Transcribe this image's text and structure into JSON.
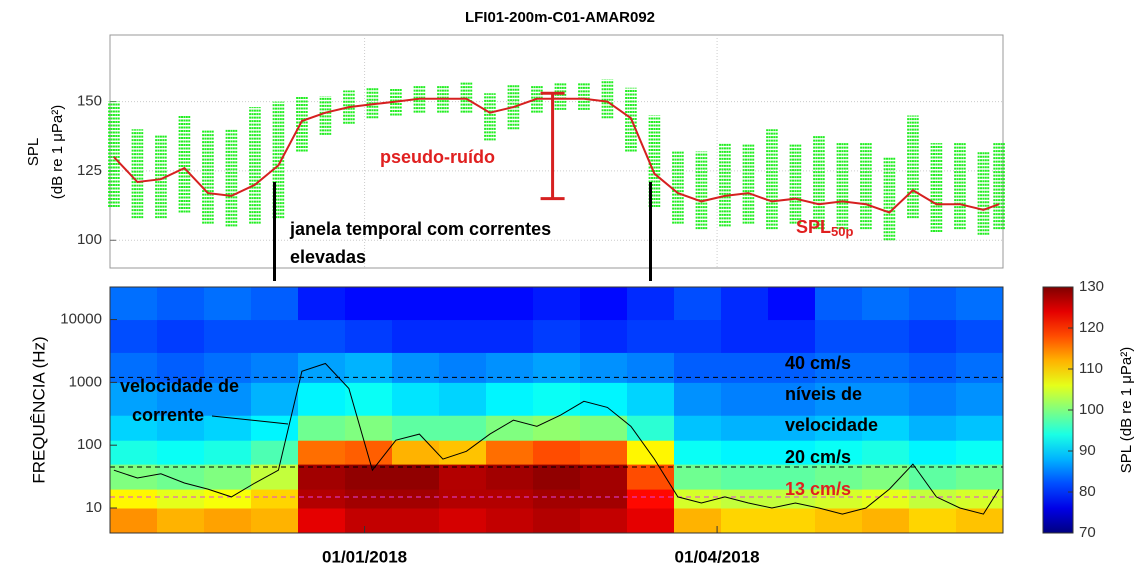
{
  "chart_data": [
    {
      "type": "line",
      "title": "LFI01-200m-C01-AMAR092",
      "ylabel": [
        "SPL",
        "(dB re 1 μPa²)"
      ],
      "xlim": [
        -65,
        163
      ],
      "ylim": [
        90,
        174
      ],
      "yticks": [
        100,
        125,
        150
      ],
      "xticks": [
        0,
        90
      ],
      "grid": true,
      "x": [
        -64,
        -58,
        -52,
        -46,
        -40,
        -34,
        -28,
        -22,
        -16,
        -10,
        -4,
        2,
        8,
        14,
        20,
        26,
        32,
        38,
        44,
        50,
        56,
        62,
        68,
        74,
        80,
        86,
        92,
        98,
        104,
        110,
        116,
        122,
        128,
        134,
        140,
        146,
        152,
        158,
        162
      ],
      "series": [
        {
          "color": "#22ee22",
          "values": [
            150,
            140,
            138,
            145,
            140,
            140,
            148,
            150,
            152,
            152,
            154,
            155,
            155,
            156,
            156,
            157,
            153,
            156,
            156,
            157,
            157,
            158,
            155,
            145,
            132,
            132,
            135,
            135,
            140,
            135,
            138,
            135,
            135,
            130,
            145,
            135,
            135,
            132,
            135
          ],
          "low": [
            112,
            108,
            108,
            110,
            106,
            105,
            106,
            108,
            132,
            138,
            142,
            144,
            145,
            146,
            146,
            146,
            136,
            140,
            146,
            147,
            147,
            144,
            132,
            112,
            106,
            104,
            105,
            106,
            104,
            106,
            104,
            104,
            104,
            100,
            108,
            103,
            104,
            102,
            104
          ]
        },
        {
          "color": "#d62020",
          "values": [
            130,
            121,
            122,
            126,
            117,
            116,
            120,
            127,
            143,
            146,
            148,
            149,
            150,
            151,
            151,
            151,
            146,
            148,
            151,
            151,
            151,
            150,
            144,
            124,
            117,
            114,
            116,
            117,
            114,
            115,
            113,
            114,
            113,
            110,
            118,
            113,
            113,
            111,
            113
          ]
        }
      ],
      "bracket": {
        "x": 48,
        "values": [
          115,
          153
        ],
        "color": "#d62020"
      },
      "window": [
        -23,
        73
      ],
      "annotations": {
        "noise": "pseudo-ruído",
        "spl": "SPL",
        "spl_sub": "50p",
        "window1": "janela temporal com correntes",
        "window2": "elevadas"
      }
    },
    {
      "type": "heatmap",
      "ylabel": "FREQUÊNCIA (Hz)",
      "log_y": true,
      "xlim": [
        -65,
        163
      ],
      "ylim": [
        4,
        33000
      ],
      "yticks": [
        10,
        100,
        1000,
        10000
      ],
      "xticks": [
        {
          "value": 0,
          "label": "01/01/2018"
        },
        {
          "value": 90,
          "label": "01/04/2018"
        }
      ],
      "xbins": [
        -65,
        -53,
        -41,
        -29,
        -17,
        -5,
        7,
        19,
        31,
        43,
        55,
        67,
        79,
        91,
        103,
        115,
        127,
        139,
        151,
        163
      ],
      "ybins": [
        4,
        10,
        20,
        50,
        120,
        300,
        1000,
        3000,
        10000,
        33000
      ],
      "z": [
        [
          114,
          112,
          113,
          112,
          124,
          126,
          126,
          125,
          126,
          127,
          126,
          124,
          112,
          110,
          110,
          111,
          112,
          110,
          111
        ],
        [
          108,
          106,
          107,
          110,
          127,
          128,
          128,
          127,
          127,
          128,
          128,
          122,
          105,
          104,
          104,
          105,
          106,
          104,
          105
        ],
        [
          100,
          99,
          100,
          104,
          128,
          129,
          129,
          127,
          128,
          129,
          128,
          118,
          99,
          98,
          98,
          99,
          100,
          98,
          99
        ],
        [
          94,
          93,
          94,
          97,
          116,
          117,
          112,
          111,
          116,
          118,
          117,
          108,
          93,
          92,
          92,
          93,
          94,
          92,
          93
        ],
        [
          90,
          89,
          90,
          92,
          99,
          100,
          98,
          98,
          100,
          101,
          100,
          95,
          89,
          88,
          88,
          89,
          90,
          88,
          89
        ],
        [
          87,
          86,
          86,
          88,
          92,
          93,
          91,
          90,
          92,
          93,
          92,
          90,
          86,
          85,
          85,
          86,
          86,
          85,
          86
        ],
        [
          84,
          83,
          84,
          85,
          87,
          88,
          86,
          85,
          86,
          87,
          86,
          85,
          83,
          83,
          83,
          84,
          84,
          83,
          84
        ],
        [
          82,
          81,
          82,
          82,
          82,
          81,
          80,
          80,
          80,
          81,
          80,
          81,
          81,
          80,
          80,
          82,
          82,
          81,
          82
        ],
        [
          84,
          83,
          84,
          83,
          79,
          78,
          78,
          78,
          78,
          79,
          78,
          80,
          82,
          80,
          78,
          83,
          84,
          83,
          84
        ]
      ],
      "x": [
        -64,
        -58,
        -52,
        -46,
        -40,
        -34,
        -28,
        -22,
        -16,
        -10,
        -4,
        2,
        8,
        14,
        20,
        26,
        32,
        38,
        44,
        50,
        56,
        62,
        68,
        74,
        80,
        86,
        92,
        98,
        104,
        110,
        116,
        122,
        128,
        134,
        140,
        146,
        152,
        158,
        162
      ],
      "series": [
        {
          "color": "#000000",
          "values": [
            40,
            30,
            35,
            25,
            20,
            15,
            25,
            40,
            1500,
            2000,
            800,
            40,
            120,
            150,
            60,
            80,
            150,
            250,
            200,
            300,
            500,
            400,
            200,
            60,
            15,
            12,
            15,
            12,
            10,
            12,
            10,
            8,
            10,
            20,
            50,
            15,
            10,
            8,
            20
          ]
        }
      ],
      "hlines": [
        {
          "value": 1200,
          "color": "#000000"
        },
        {
          "value": 45,
          "color": "#000000"
        },
        {
          "value": 15,
          "color": "#e040e0"
        }
      ],
      "annotations": {
        "current1": "velocidade de",
        "current2": "corrente",
        "v40": "40 cm/s",
        "levels1": "níveis de",
        "levels2": "velocidade",
        "v20": "20 cm/s",
        "v13": "13 cm/s"
      },
      "colorbar": {
        "label": "SPL (dB re 1 μPa²)",
        "lim": [
          70,
          130
        ],
        "ticks": [
          70,
          80,
          90,
          100,
          110,
          120,
          130
        ]
      }
    }
  ]
}
